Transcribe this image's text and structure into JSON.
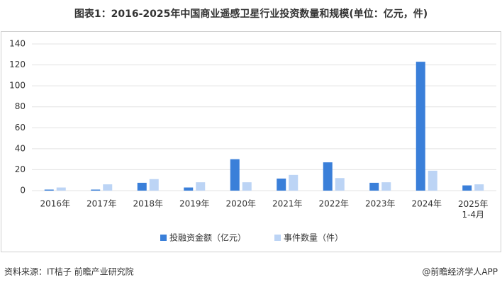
{
  "chart_data": {
    "type": "bar",
    "title": "图表1：2016-2025年中国商业遥感卫星行业投资数量和规模(单位：亿元，件)",
    "categories": [
      "2016年",
      "2017年",
      "2018年",
      "2019年",
      "2020年",
      "2021年",
      "2022年",
      "2023年",
      "2024年",
      "2025年\n1-4月"
    ],
    "series": [
      {
        "name": "投融资金额（亿元）",
        "color": "#3a7fd9",
        "values": [
          1,
          1,
          7.5,
          3,
          30,
          11.5,
          27,
          7.5,
          123,
          5
        ]
      },
      {
        "name": "事件数量（件）",
        "color": "#bcd4f5",
        "values": [
          3,
          6,
          11,
          8,
          8,
          15,
          12,
          8,
          19,
          6
        ]
      }
    ],
    "ylim": [
      0,
      140
    ],
    "yticks": [
      0,
      20,
      40,
      60,
      80,
      100,
      120,
      140
    ],
    "grid": true,
    "legend": "bottom",
    "source": "资料来源：IT桔子 前瞻产业研究院",
    "credit": "@前瞻经济学人APP"
  }
}
